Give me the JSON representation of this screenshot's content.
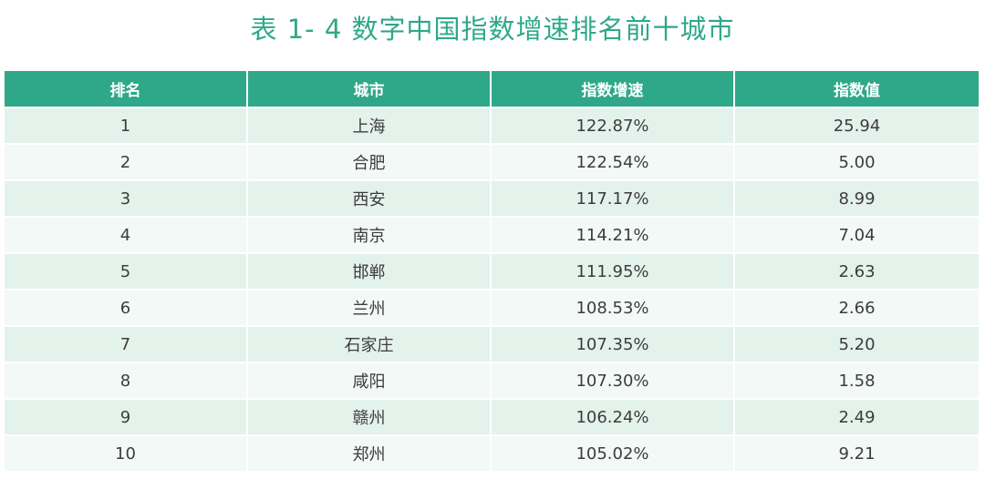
{
  "title": "表 1- 4  数字中国指数增速排名前十城市",
  "table": {
    "headers": [
      "排名",
      "城市",
      "指数增速",
      "指数值"
    ],
    "rows": [
      [
        "1",
        "上海",
        "122.87%",
        "25.94"
      ],
      [
        "2",
        "合肥",
        "122.54%",
        "5.00"
      ],
      [
        "3",
        "西安",
        "117.17%",
        "8.99"
      ],
      [
        "4",
        "南京",
        "114.21%",
        "7.04"
      ],
      [
        "5",
        "邯郸",
        "111.95%",
        "2.63"
      ],
      [
        "6",
        "兰州",
        "108.53%",
        "2.66"
      ],
      [
        "7",
        "石家庄",
        "107.35%",
        "5.20"
      ],
      [
        "8",
        "咸阳",
        "107.30%",
        "1.58"
      ],
      [
        "9",
        "赣州",
        "106.24%",
        "2.49"
      ],
      [
        "10",
        "郑州",
        "105.02%",
        "9.21"
      ]
    ]
  },
  "colors": {
    "accent": "#2fa889",
    "row_odd": "#e4f2ec",
    "row_even": "#f3f9f6"
  }
}
